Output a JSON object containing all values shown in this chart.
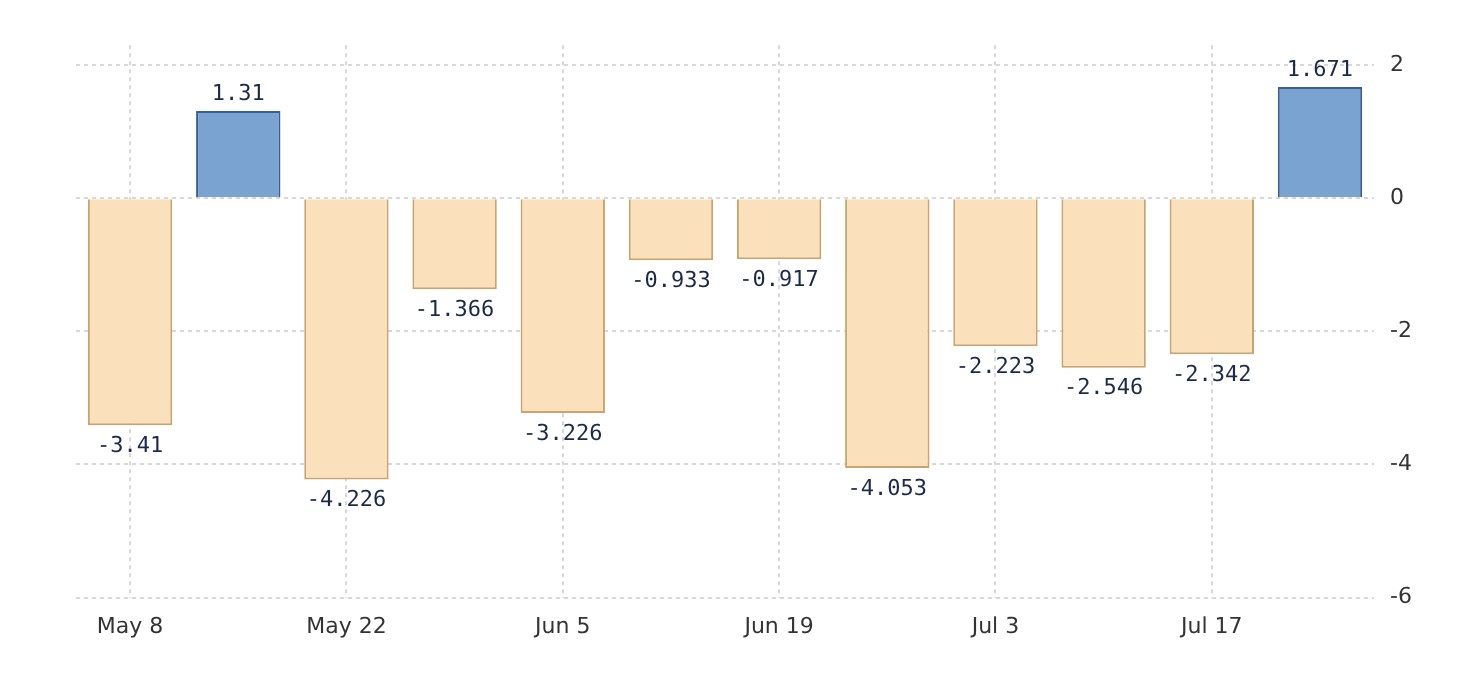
{
  "chart_data": {
    "type": "bar",
    "categories": [
      "May 8",
      null,
      "May 22",
      null,
      "Jun 5",
      null,
      "Jun 19",
      null,
      "Jul 3",
      null,
      "Jul 17",
      null
    ],
    "values": [
      -3.41,
      1.31,
      -4.226,
      -1.366,
      -3.226,
      -0.933,
      -0.917,
      -4.053,
      -2.223,
      -2.546,
      -2.342,
      1.671
    ],
    "colors": [
      "#fbe1bb",
      "#7ba3d2",
      "#fbe1bb",
      "#fbe1bb",
      "#fbe1bb",
      "#fbe1bb",
      "#fbe1bb",
      "#fbe1bb",
      "#fbe1bb",
      "#fbe1bb",
      "#fbe1bb",
      "#7ba3d2"
    ],
    "ylim": [
      -6,
      2.3
    ],
    "yticks": [
      -6,
      -4,
      -2,
      0,
      2
    ],
    "grid": true,
    "data_labels": true,
    "legend": false
  }
}
